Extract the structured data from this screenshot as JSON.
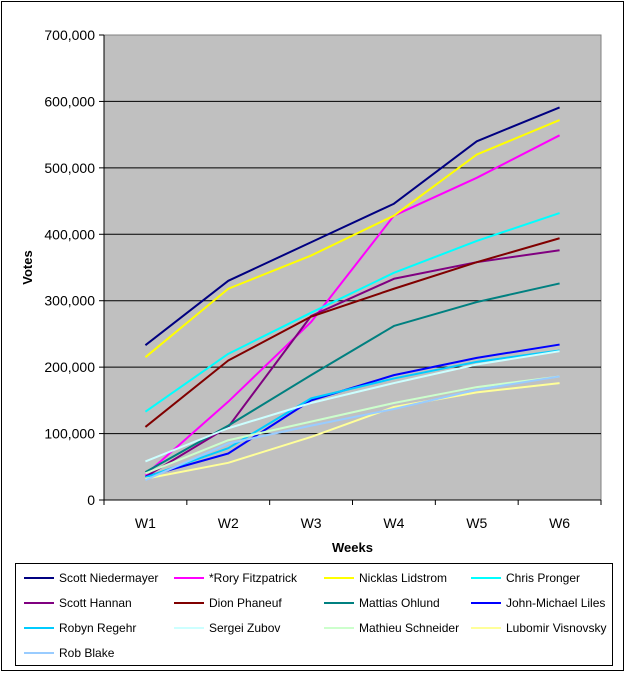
{
  "chart_data": {
    "type": "line",
    "title": "",
    "xlabel": "Weeks",
    "ylabel": "Votes",
    "categories": [
      "W1",
      "W2",
      "W3",
      "W4",
      "W5",
      "W6"
    ],
    "ylim": [
      0,
      700000
    ],
    "yticks": [
      0,
      100000,
      200000,
      300000,
      400000,
      500000,
      600000,
      700000
    ],
    "ytick_labels": [
      "0",
      "100,000",
      "200,000",
      "300,000",
      "400,000",
      "500,000",
      "600,000",
      "700,000"
    ],
    "grid": true,
    "legend_position": "bottom",
    "plot_background": "#c0c0c0",
    "series": [
      {
        "name": "Scott Niedermayer",
        "color": "#000080",
        "values": [
          233000,
          330000,
          388000,
          446000,
          540000,
          591000
        ]
      },
      {
        "name": "*Rory Fitzpatrick",
        "color": "#ff00ff",
        "values": [
          38000,
          148000,
          268000,
          428000,
          485000,
          549000
        ]
      },
      {
        "name": "Nicklas Lidstrom",
        "color": "#ffff00",
        "values": [
          215000,
          318000,
          368000,
          428000,
          520000,
          572000
        ]
      },
      {
        "name": "Chris Pronger",
        "color": "#00ffff",
        "values": [
          133000,
          220000,
          282000,
          342000,
          390000,
          432000
        ]
      },
      {
        "name": "Scott Hannan",
        "color": "#800080",
        "values": [
          35000,
          110000,
          277000,
          333000,
          358000,
          376000
        ]
      },
      {
        "name": "Dion Phaneuf",
        "color": "#800000",
        "values": [
          110000,
          210000,
          276000,
          318000,
          358000,
          394000
        ]
      },
      {
        "name": "Mattias Ohlund",
        "color": "#008080",
        "values": [
          42000,
          112000,
          188000,
          262000,
          298000,
          326000
        ]
      },
      {
        "name": "John-Michael Liles",
        "color": "#0000ff",
        "values": [
          35000,
          70000,
          150000,
          188000,
          214000,
          234000
        ]
      },
      {
        "name": "Robyn Regehr",
        "color": "#00ccff",
        "values": [
          34000,
          78000,
          153000,
          183000,
          208000,
          225000
        ]
      },
      {
        "name": "Sergei Zubov",
        "color": "#ccffff",
        "values": [
          58000,
          108000,
          146000,
          176000,
          204000,
          224000
        ]
      },
      {
        "name": "Mathieu Schneider",
        "color": "#ccffcc",
        "values": [
          40000,
          90000,
          118000,
          146000,
          170000,
          186000
        ]
      },
      {
        "name": "Lubomir Visnovsky",
        "color": "#ffff99",
        "values": [
          32000,
          56000,
          95000,
          140000,
          162000,
          176000
        ]
      },
      {
        "name": "Rob Blake",
        "color": "#99ccff",
        "values": [
          30000,
          85000,
          112000,
          137000,
          166000,
          186000
        ]
      }
    ]
  }
}
